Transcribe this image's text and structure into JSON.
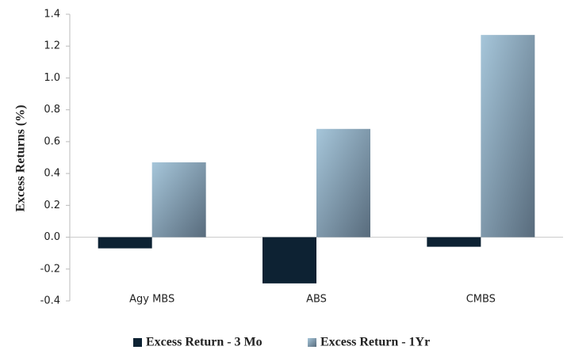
{
  "chart_data": {
    "type": "bar",
    "y_label": "Excess Returns (%)",
    "categories": [
      "Agy MBS",
      "ABS",
      "CMBS"
    ],
    "series": [
      {
        "name": "Excess Return - 3 Mo",
        "color": "#0d2233",
        "values": [
          -0.07,
          -0.29,
          -0.06
        ]
      },
      {
        "name": "Excess Return - 1Yr",
        "color": "#a6c6da",
        "values": [
          0.47,
          0.68,
          1.27
        ]
      }
    ],
    "ylim": [
      -0.4,
      1.4
    ],
    "yticks": [
      -0.4,
      -0.2,
      {
        "value": 0,
        "label": "0.0"
      },
      0.2,
      0.4,
      0.6,
      0.8,
      {
        "value": 1,
        "label": "1.0"
      },
      1.2,
      1.4
    ],
    "legend": "bottom"
  }
}
